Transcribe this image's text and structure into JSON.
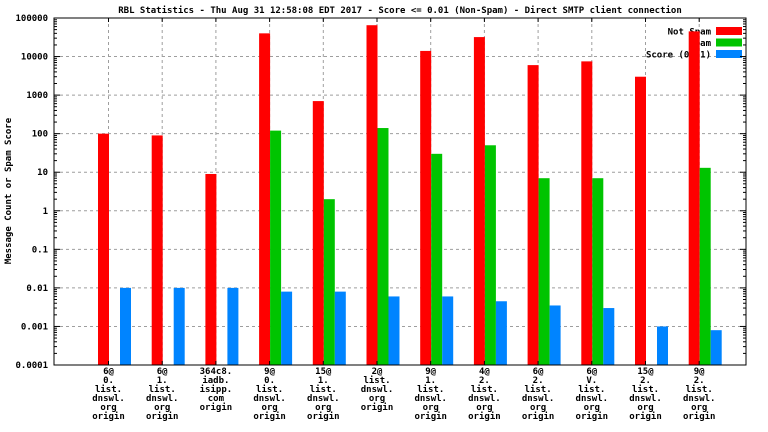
{
  "chart_data": {
    "type": "bar",
    "title": "RBL Statistics - Thu Aug 31 12:58:08 EDT 2017 - Score <= 0.01 (Non-Spam) - Direct SMTP client connection",
    "ylabel": "Message Count or Spam Score",
    "xlabel": "",
    "y_scale": "log",
    "ylim": [
      0.0001,
      100000
    ],
    "ytick_labels": [
      "100000",
      "10000",
      "1000",
      "100",
      "10",
      "1",
      "0.1",
      "0.01",
      "0.001",
      "0.0001"
    ],
    "grid": true,
    "legend_position": "top-right",
    "background_color": "#ffffff",
    "grid_color": "#9e9e9e",
    "frame_color": "#000000",
    "categories": [
      [
        "6@",
        "0.",
        "list.",
        "dnswl.",
        "org",
        "origin"
      ],
      [
        "6@",
        "1.",
        "list.",
        "dnswl.",
        "org",
        "origin"
      ],
      [
        "364c8.",
        "iadb.",
        "isipp.",
        "com",
        "origin"
      ],
      [
        "9@",
        "0.",
        "list.",
        "dnswl.",
        "org",
        "origin"
      ],
      [
        "15@",
        "1.",
        "list.",
        "dnswl.",
        "org",
        "origin"
      ],
      [
        "2@",
        "list.",
        "dnswl.",
        "org",
        "origin"
      ],
      [
        "9@",
        "1.",
        "list.",
        "dnswl.",
        "org",
        "origin"
      ],
      [
        "4@",
        "2.",
        "list.",
        "dnswl.",
        "org",
        "origin"
      ],
      [
        "6@",
        "2.",
        "list.",
        "dnswl.",
        "org",
        "origin"
      ],
      [
        "6@",
        "V.",
        "list.",
        "dnswl.",
        "org",
        "origin"
      ],
      [
        "15@",
        "2.",
        "list.",
        "dnswl.",
        "org",
        "origin"
      ],
      [
        "9@",
        "2.",
        "list.",
        "dnswl.",
        "org",
        "origin"
      ]
    ],
    "series": [
      {
        "name": "Not Spam",
        "color": "#ff0000",
        "values": [
          100,
          90,
          9,
          40000,
          700,
          65000,
          14000,
          32000,
          6000,
          7500,
          3000,
          45000
        ]
      },
      {
        "name": "Spam",
        "color": "#00c400",
        "values": [
          null,
          null,
          null,
          120,
          2,
          140,
          30,
          50,
          7,
          7,
          null,
          13
        ]
      },
      {
        "name": "Score (0..1)",
        "color": "#0084ff",
        "values": [
          0.01,
          0.01,
          0.01,
          0.008,
          0.008,
          0.006,
          0.006,
          0.0045,
          0.0035,
          0.003,
          0.001,
          0.0008
        ]
      }
    ]
  }
}
